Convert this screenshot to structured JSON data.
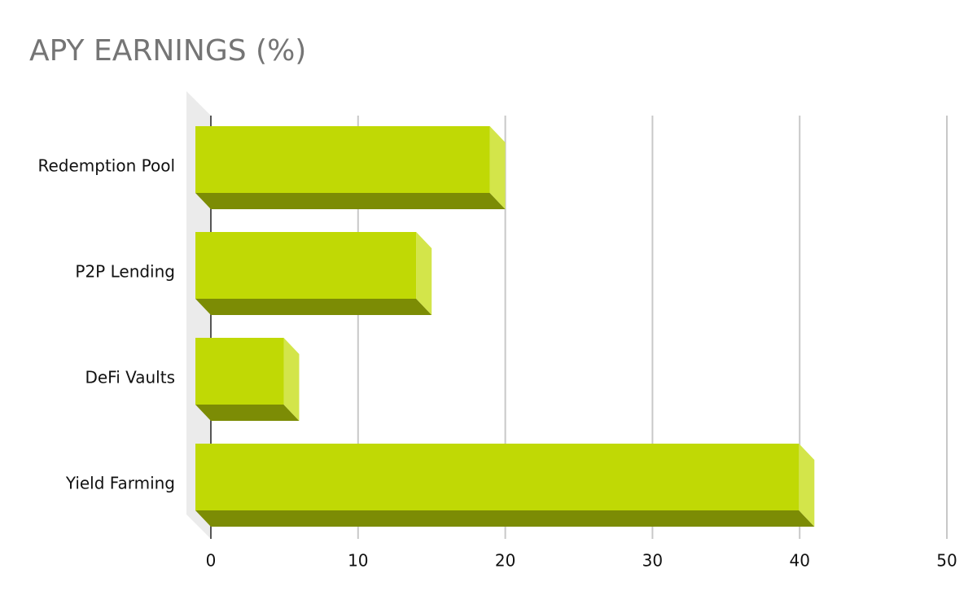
{
  "chart_data": {
    "type": "bar3d",
    "title": "APY EARNINGS (%)",
    "categories": [
      "Redemption Pool",
      "P2P Lending",
      "DeFi Vaults",
      "Yield Farming"
    ],
    "values": [
      20,
      15,
      6,
      41
    ],
    "color": "#c0d905",
    "xlim": [
      0,
      50
    ],
    "xticks": [
      0,
      10,
      20,
      30,
      40,
      50
    ],
    "grid": true
  }
}
